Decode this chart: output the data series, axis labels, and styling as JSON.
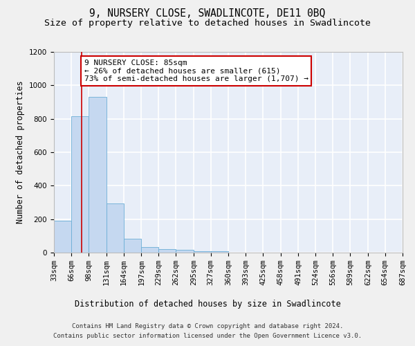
{
  "title": "9, NURSERY CLOSE, SWADLINCOTE, DE11 0BQ",
  "subtitle": "Size of property relative to detached houses in Swadlincote",
  "xlabel": "Distribution of detached houses by size in Swadlincote",
  "ylabel": "Number of detached properties",
  "bin_edges": [
    33,
    66,
    98,
    131,
    164,
    197,
    229,
    262,
    295,
    327,
    360,
    393,
    425,
    458,
    491,
    524,
    556,
    589,
    622,
    654,
    687
  ],
  "bar_heights": [
    190,
    815,
    930,
    295,
    82,
    35,
    20,
    15,
    10,
    8,
    0,
    0,
    0,
    0,
    0,
    0,
    0,
    0,
    0,
    0
  ],
  "bar_color": "#c5d8f0",
  "bar_edge_color": "#6baed6",
  "vline_x": 85,
  "vline_color": "#cc0000",
  "ylim": [
    0,
    1200
  ],
  "annotation_text": "9 NURSERY CLOSE: 85sqm\n← 26% of detached houses are smaller (615)\n73% of semi-detached houses are larger (1,707) →",
  "annotation_box_color": "#ffffff",
  "annotation_box_edge": "#cc0000",
  "footer_line1": "Contains HM Land Registry data © Crown copyright and database right 2024.",
  "footer_line2": "Contains public sector information licensed under the Open Government Licence v3.0.",
  "fig_bg_color": "#f0f0f0",
  "plot_bg_color": "#e8eef8",
  "grid_color": "#ffffff",
  "title_fontsize": 10.5,
  "subtitle_fontsize": 9.5,
  "tick_fontsize": 7.5,
  "ylabel_fontsize": 8.5,
  "xlabel_fontsize": 8.5,
  "annotation_fontsize": 8.0,
  "footer_fontsize": 6.5
}
